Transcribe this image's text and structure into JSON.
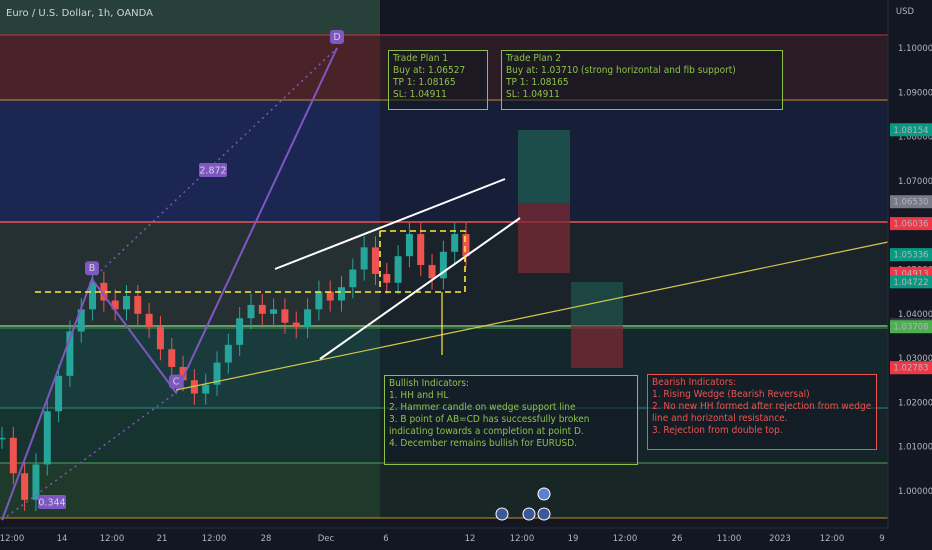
{
  "instrument_title": "Euro / U.S. Dollar, 1h, OANDA",
  "axis_currency": "USD",
  "chart_data": {
    "type": "line",
    "title": "Euro / U.S. Dollar, 1h, OANDA",
    "x_ticks": [
      "12:00",
      "14",
      "12:00",
      "21",
      "12:00",
      "28",
      "Dec",
      "6",
      "12",
      "12:00",
      "19",
      "12:00",
      "26",
      "11:00",
      "2023",
      "12:00",
      "9"
    ],
    "y_ticks": [
      1.0,
      1.01,
      1.02,
      1.03,
      1.04,
      1.05,
      1.06,
      1.07,
      1.08,
      1.09,
      1.1
    ],
    "ylim": [
      0.993,
      1.113
    ],
    "price_tags": [
      {
        "value": "1.08154",
        "color": "#089981"
      },
      {
        "value": "1.06530",
        "color": "#787b86"
      },
      {
        "value": "1.06036",
        "color": "#f23645"
      },
      {
        "value": "1.05336",
        "color": "#089981"
      },
      {
        "value": "1.04913",
        "color": "#f23645"
      },
      {
        "value": "1.04722",
        "color": "#089981"
      },
      {
        "value": "1.03753",
        "color": "#363a45"
      },
      {
        "value": "1.03708",
        "color": "#4caf50"
      },
      {
        "value": "1.02783",
        "color": "#f23645"
      }
    ],
    "pattern_points": [
      {
        "label": "B",
        "value": 1.0478
      },
      {
        "label": "C",
        "value": 1.0222
      },
      {
        "label": "D",
        "value": 1.1
      }
    ],
    "fib_labels": [
      "2.872",
      "0.344"
    ],
    "series": [
      {
        "values": [
          1.012,
          1.004,
          0.998,
          1.006,
          1.018,
          1.026,
          1.036,
          1.041,
          1.047,
          1.043,
          1.041,
          1.044,
          1.04,
          1.037,
          1.032,
          1.028,
          1.025,
          1.022,
          1.024,
          1.029,
          1.033,
          1.039,
          1.042,
          1.04,
          1.041,
          1.038,
          1.037,
          1.041,
          1.045,
          1.043,
          1.046,
          1.05,
          1.055,
          1.049,
          1.047,
          1.053,
          1.058,
          1.051,
          1.048,
          1.054,
          1.058,
          1.053
        ]
      }
    ]
  },
  "trade_plan_1": "Trade Plan 1\nBuy at: 1.06527\nTP 1: 1.08165\nSL: 1.04911",
  "trade_plan_2": "Trade Plan 2\nBuy at: 1.03710 (strong horizontal and fib support)\nTP 1: 1.08165\nSL: 1.04911",
  "bullish_indicators": "Bullish Indicators:\n1. HH and HL\n2. Hammer candle on wedge support line\n3. B point of AB=CD has successfully broken indicating towards a completion at point D.\n4. December remains bullish for EURUSD.",
  "bearish_indicators": "Bearish Indicators:\n1. Rising Wedge (Bearish Reversal)\n2. No new HH formed after rejection from wedge line and horizontal resistance.\n3. Rejection from double top."
}
